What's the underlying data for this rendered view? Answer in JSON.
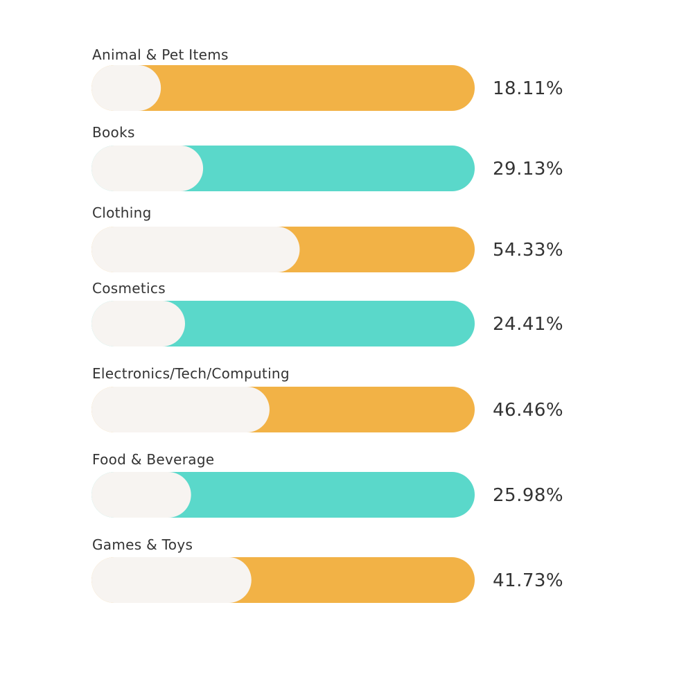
{
  "colors": {
    "orange": "#F2B246",
    "teal": "#5AD8CA",
    "fill_background": "#F7F4F1",
    "text": "#333333"
  },
  "chart_data": {
    "type": "bar",
    "orientation": "horizontal",
    "style": "progress-bars",
    "categories": [
      "Animal & Pet Items",
      "Books",
      "Clothing",
      "Cosmetics",
      "Electronics/Tech/Computing",
      "Food & Beverage",
      "Games & Toys"
    ],
    "values": [
      18.11,
      29.13,
      54.33,
      24.41,
      46.46,
      25.98,
      41.73
    ],
    "value_labels": [
      "18.11%",
      "29.13%",
      "54.33%",
      "24.41%",
      "46.46%",
      "25.98%",
      "41.73%"
    ],
    "bar_colors": [
      "orange",
      "teal",
      "orange",
      "teal",
      "orange",
      "teal",
      "orange"
    ],
    "xlim": [
      0,
      100
    ],
    "title": "",
    "xlabel": "",
    "ylabel": "",
    "grid": false,
    "legend": "none"
  }
}
